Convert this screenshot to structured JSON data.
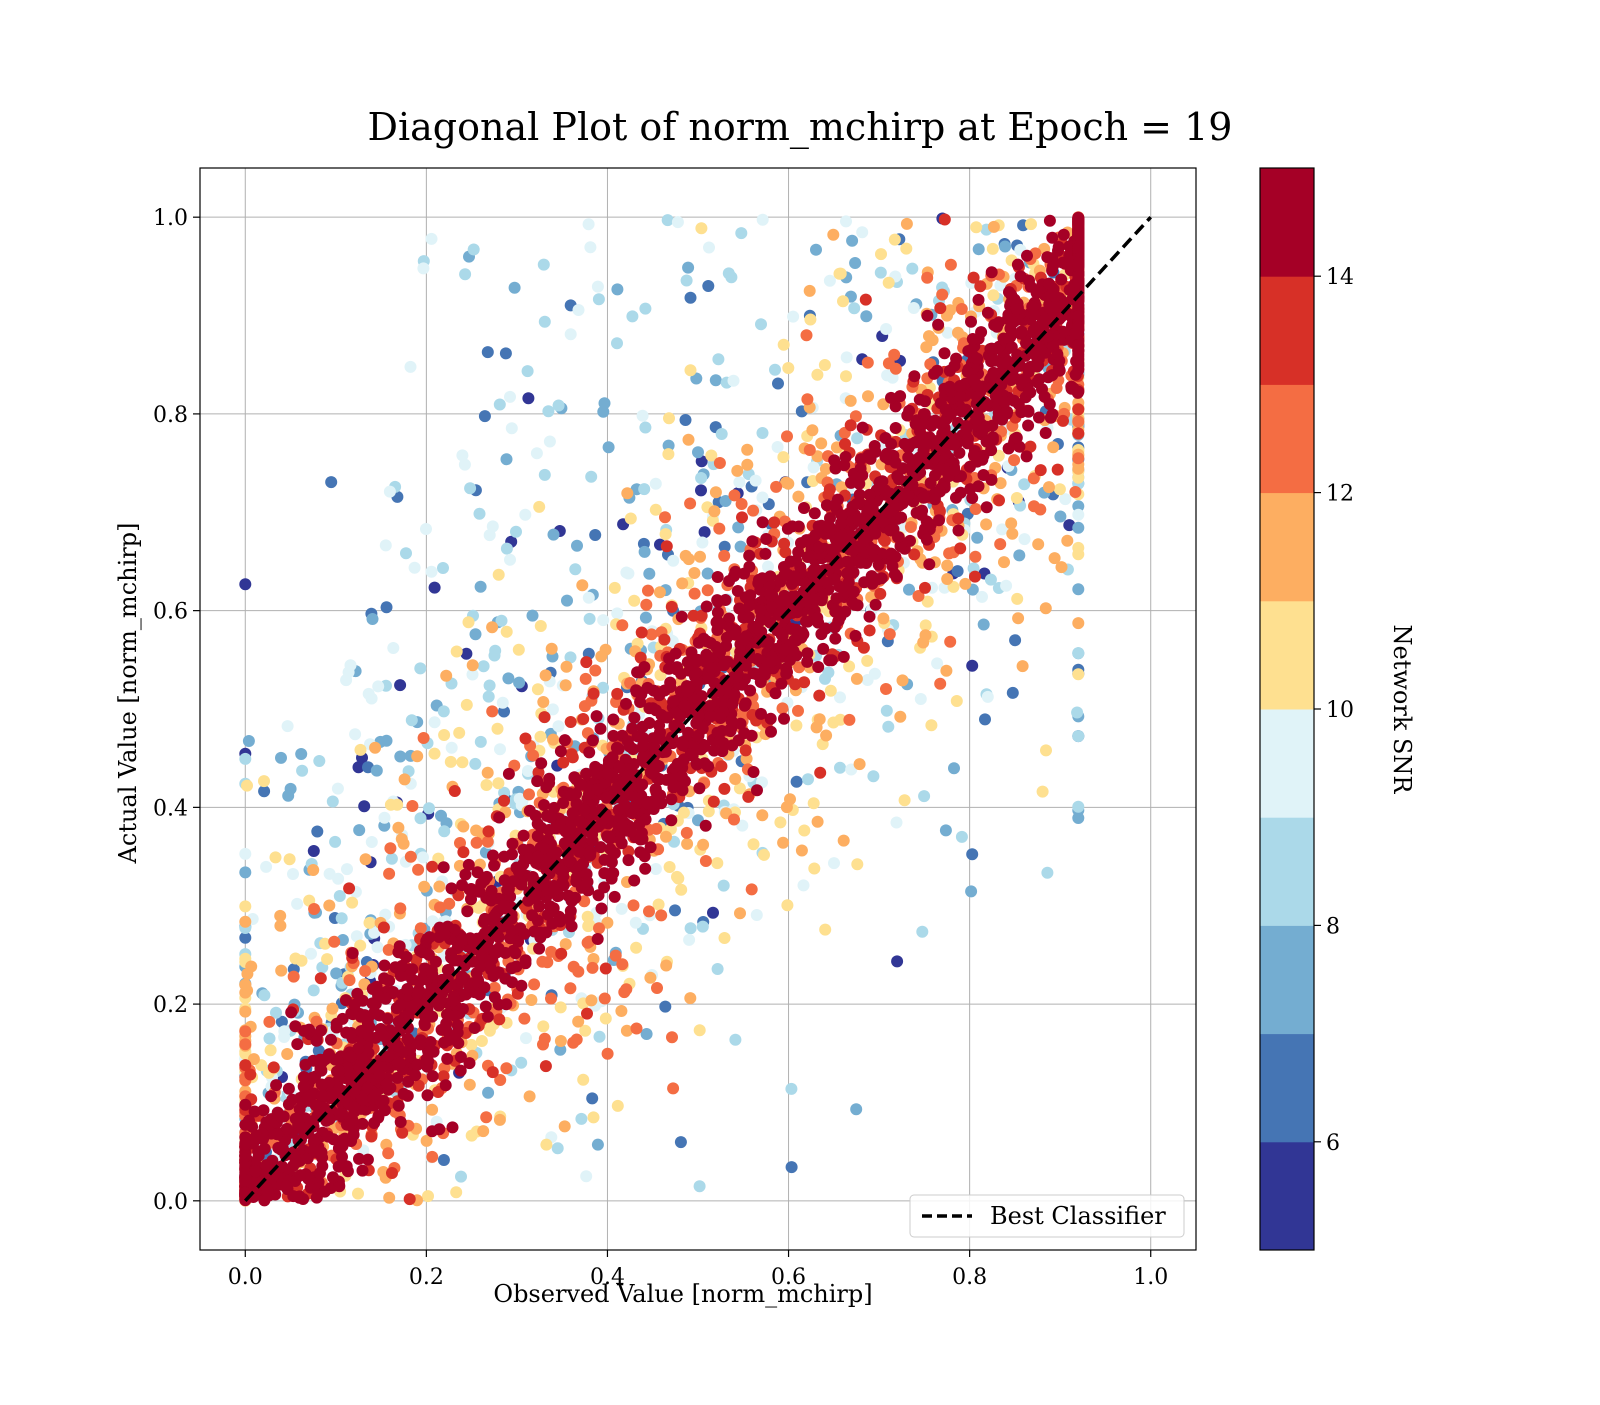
{
  "chart_data": {
    "type": "scatter",
    "title": "Diagonal Plot of norm_mchirp at Epoch = 19",
    "xlabel": "Observed Value [norm_mchirp]",
    "ylabel": "Actual Value [norm_mchirp]",
    "xlim": [
      -0.05,
      1.05
    ],
    "ylim": [
      -0.05,
      1.05
    ],
    "xticks": [
      "0.0",
      "0.2",
      "0.4",
      "0.6",
      "0.8",
      "1.0"
    ],
    "yticks": [
      "0.0",
      "0.2",
      "0.4",
      "0.6",
      "0.8",
      "1.0"
    ],
    "grid": true,
    "reference_line": {
      "name": "Best Classifier",
      "x": [
        0.0,
        1.0
      ],
      "y": [
        0.0,
        1.0
      ],
      "color": "#000000",
      "style": "dashed"
    },
    "legend": {
      "location": "lower-right",
      "entries": [
        "Best Classifier"
      ]
    },
    "colorbar": {
      "label": "Network SNR",
      "range": [
        5,
        15
      ],
      "ticks": [
        "6",
        "8",
        "10",
        "12",
        "14"
      ],
      "tick_values": [
        6,
        8,
        10,
        12,
        14
      ],
      "levels": 10,
      "colors": [
        "#313695",
        "#4575b4",
        "#74add1",
        "#abd9e9",
        "#e0f3f8",
        "#fee090",
        "#fdae61",
        "#f46d43",
        "#d73027",
        "#a50026"
      ]
    },
    "series_description": {
      "x_range": [
        0.0,
        0.92
      ],
      "y_range": [
        0.0,
        1.0
      ],
      "high_snr_concentrated_near_diagonal": true,
      "low_snr_scattered": true
    }
  }
}
